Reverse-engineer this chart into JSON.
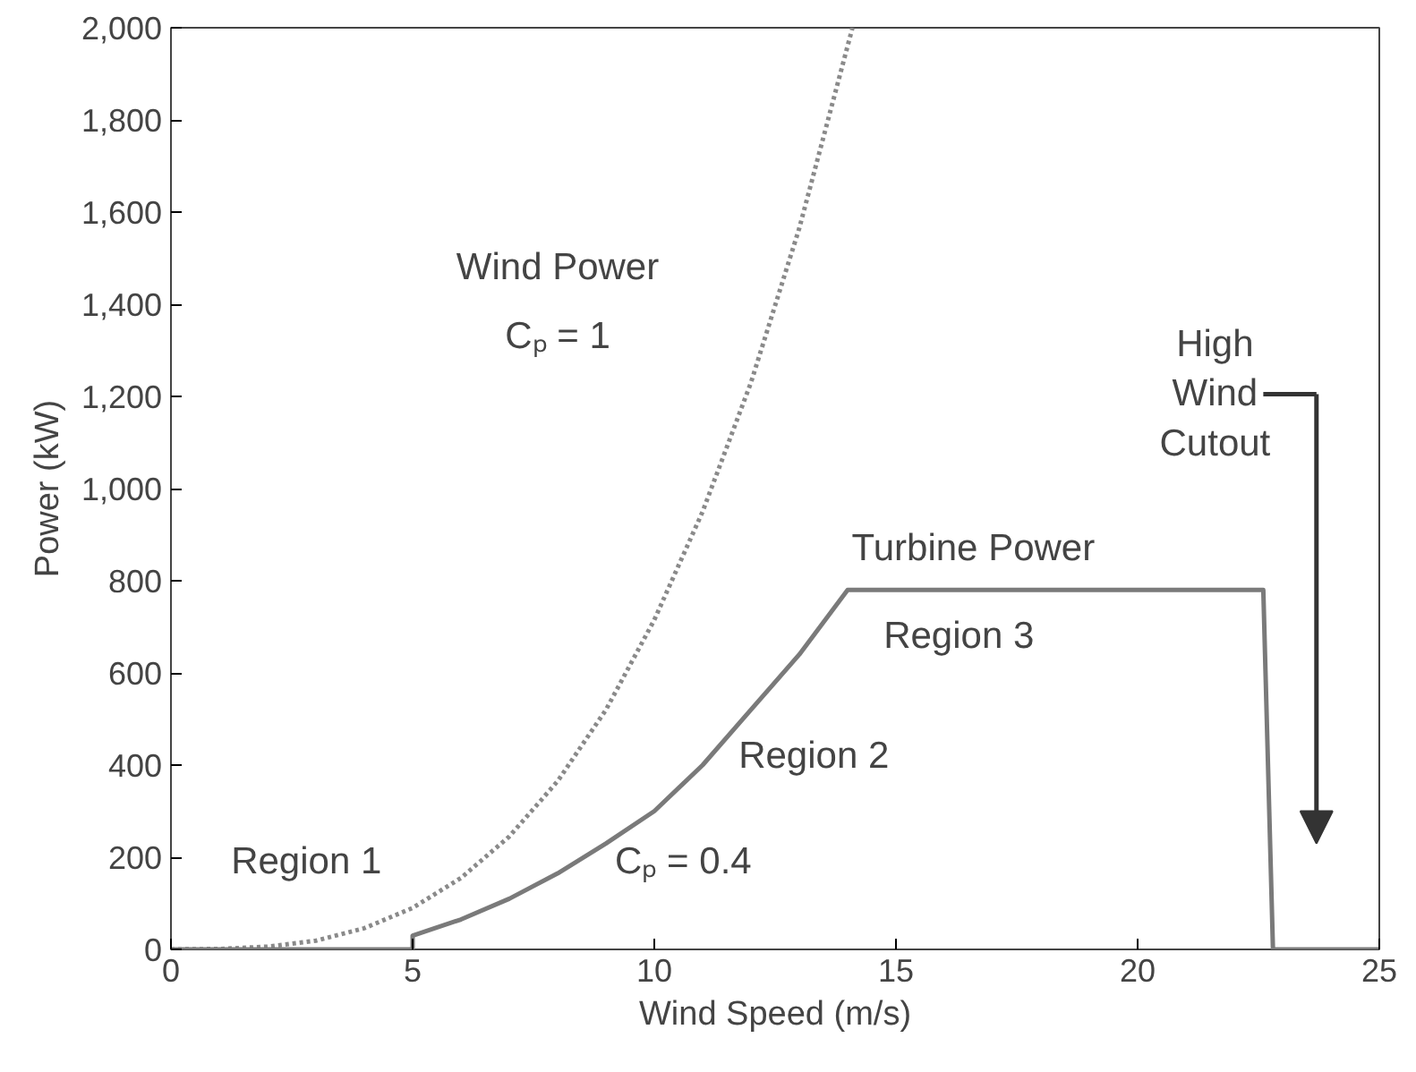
{
  "chart_data": {
    "type": "line",
    "xlabel": "Wind Speed (m/s)",
    "ylabel": "Power (kW)",
    "xlim": [
      0,
      25
    ],
    "ylim": [
      0,
      2000
    ],
    "xticks": [
      0,
      5,
      10,
      15,
      20,
      25
    ],
    "yticks": [
      0,
      {
        "value": 200,
        "label": "200"
      },
      {
        "value": 400,
        "label": "400"
      },
      {
        "value": 600,
        "label": "600"
      },
      {
        "value": 800,
        "label": "800"
      },
      {
        "value": 1000,
        "label": "1,000"
      },
      {
        "value": 1200,
        "label": "1,200"
      },
      {
        "value": 1400,
        "label": "1,400"
      },
      {
        "value": 1600,
        "label": "1,600"
      },
      {
        "value": 1800,
        "label": "1,800"
      },
      {
        "value": 2000,
        "label": "2,000"
      }
    ],
    "grid": false,
    "series": [
      {
        "color": "#8a8a8a",
        "line_style": "dotted",
        "x": [
          0,
          1,
          2,
          3,
          4,
          5,
          6,
          7,
          8,
          9,
          10,
          11,
          12,
          13,
          14.1
        ],
        "values": [
          0,
          1,
          6,
          19,
          46,
          90,
          155,
          245,
          365,
          520,
          715,
          950,
          1230,
          1565,
          2000
        ]
      },
      {
        "color": "#7a7a7a",
        "line_style": "solid",
        "x": [
          0,
          5,
          5,
          6,
          7,
          8,
          9,
          10,
          11,
          12,
          13,
          14,
          22.6,
          22.8,
          25
        ],
        "values": [
          0,
          0,
          30,
          65,
          110,
          165,
          230,
          300,
          400,
          520,
          640,
          780,
          780,
          0,
          0
        ]
      }
    ],
    "annotations": [
      "Wind Power",
      "Cₚ = 1",
      "High\nWind\nCutout",
      "Turbine Power",
      "Region 3",
      "Region 2",
      "Cₚ = 0.4",
      "Region 1"
    ]
  }
}
